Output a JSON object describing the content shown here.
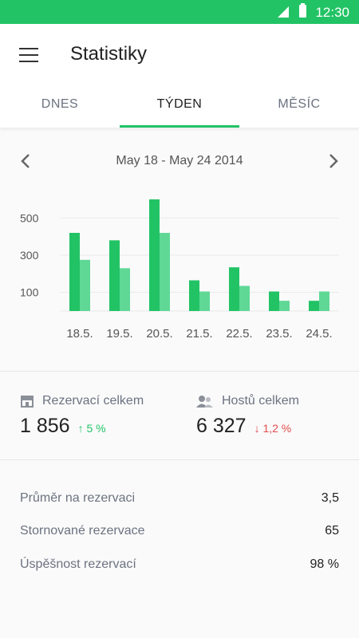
{
  "status": {
    "time": "12:30"
  },
  "header": {
    "title": "Statistiky"
  },
  "tabs": [
    {
      "label": "DNES",
      "active": false
    },
    {
      "label": "TÝDEN",
      "active": true
    },
    {
      "label": "MĚSÍC",
      "active": false
    }
  ],
  "date_range": "May 18 - May 24 2014",
  "chart_data": {
    "type": "bar",
    "categories": [
      "18.5.",
      "19.5.",
      "20.5.",
      "21.5.",
      "22.5.",
      "23.5.",
      "24.5."
    ],
    "series": [
      {
        "values": [
          420,
          380,
          600,
          165,
          235,
          105,
          55
        ]
      },
      {
        "values": [
          275,
          230,
          420,
          105,
          135,
          55,
          105
        ]
      }
    ],
    "yticks": [
      100,
      300,
      500
    ],
    "ylim": [
      0,
      600
    ],
    "colors": [
      "#22c365",
      "#5fd896"
    ]
  },
  "stats": {
    "reservations": {
      "label": "Rezervací celkem",
      "value": "1 856",
      "change": "5 %",
      "trend": "up",
      "icon": "store-icon"
    },
    "guests": {
      "label": "Hostů celkem",
      "value": "6 327",
      "change": "1,2 %",
      "trend": "down",
      "icon": "people-icon"
    }
  },
  "details": [
    {
      "label": "Průměr na rezervaci",
      "value": "3,5"
    },
    {
      "label": "Stornované rezervace",
      "value": "65"
    },
    {
      "label": "Úspěšnost rezervací",
      "value": "98 %"
    }
  ]
}
